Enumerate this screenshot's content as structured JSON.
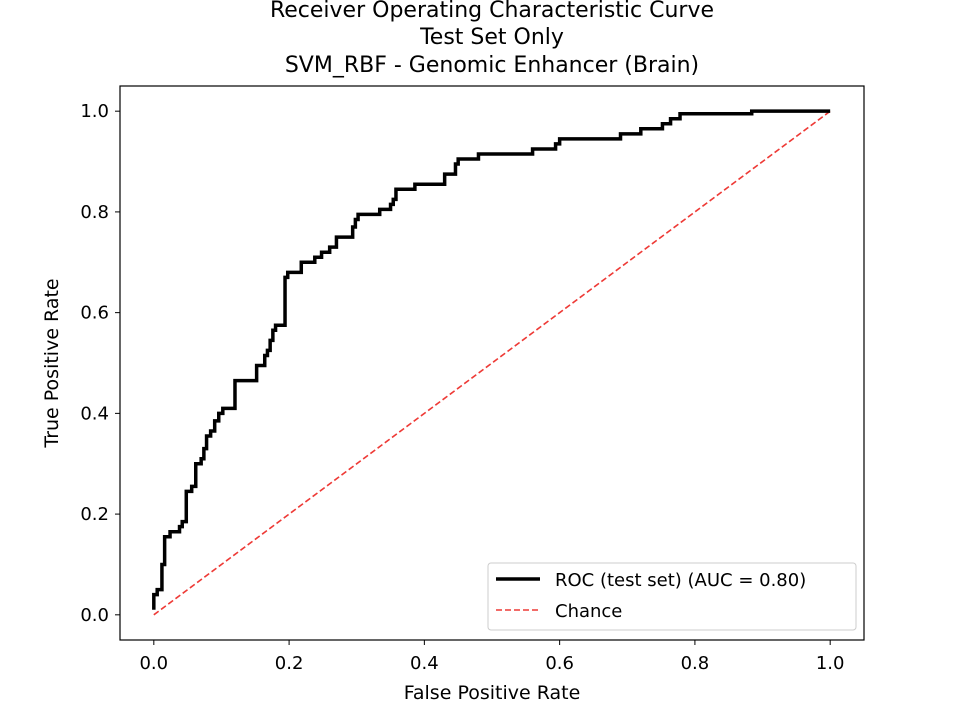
{
  "chart_data": {
    "type": "line",
    "title": [
      "Receiver Operating Characteristic Curve",
      "Test Set Only",
      "SVM_RBF - Genomic Enhancer (Brain)"
    ],
    "xlabel": "False Positive Rate",
    "ylabel": "True Positive Rate",
    "xlim": [
      -0.05,
      1.05
    ],
    "ylim": [
      -0.05,
      1.05
    ],
    "x_ticks": [
      0.0,
      0.2,
      0.4,
      0.6,
      0.8,
      1.0
    ],
    "y_ticks": [
      0.0,
      0.2,
      0.4,
      0.6,
      0.8,
      1.0
    ],
    "x_tick_labels": [
      "0.0",
      "0.2",
      "0.4",
      "0.6",
      "0.8",
      "1.0"
    ],
    "y_tick_labels": [
      "0.0",
      "0.2",
      "0.4",
      "0.6",
      "0.8",
      "1.0"
    ],
    "grid": false,
    "legend_position": "lower-right",
    "series": [
      {
        "name": "ROC (test set) (AUC = 0.80)",
        "color": "#000000",
        "style": "solid",
        "points": [
          [
            0.0,
            0.01
          ],
          [
            0.0,
            0.04
          ],
          [
            0.005,
            0.04
          ],
          [
            0.005,
            0.05
          ],
          [
            0.012,
            0.05
          ],
          [
            0.012,
            0.1
          ],
          [
            0.016,
            0.1
          ],
          [
            0.016,
            0.155
          ],
          [
            0.024,
            0.155
          ],
          [
            0.024,
            0.165
          ],
          [
            0.038,
            0.165
          ],
          [
            0.038,
            0.175
          ],
          [
            0.042,
            0.175
          ],
          [
            0.042,
            0.185
          ],
          [
            0.048,
            0.185
          ],
          [
            0.048,
            0.245
          ],
          [
            0.056,
            0.245
          ],
          [
            0.056,
            0.255
          ],
          [
            0.062,
            0.255
          ],
          [
            0.062,
            0.3
          ],
          [
            0.07,
            0.3
          ],
          [
            0.07,
            0.31
          ],
          [
            0.074,
            0.31
          ],
          [
            0.074,
            0.33
          ],
          [
            0.078,
            0.33
          ],
          [
            0.078,
            0.355
          ],
          [
            0.084,
            0.355
          ],
          [
            0.084,
            0.365
          ],
          [
            0.09,
            0.365
          ],
          [
            0.09,
            0.385
          ],
          [
            0.096,
            0.385
          ],
          [
            0.096,
            0.4
          ],
          [
            0.102,
            0.4
          ],
          [
            0.102,
            0.41
          ],
          [
            0.12,
            0.41
          ],
          [
            0.12,
            0.465
          ],
          [
            0.152,
            0.465
          ],
          [
            0.152,
            0.495
          ],
          [
            0.164,
            0.495
          ],
          [
            0.164,
            0.515
          ],
          [
            0.168,
            0.515
          ],
          [
            0.168,
            0.525
          ],
          [
            0.172,
            0.525
          ],
          [
            0.172,
            0.545
          ],
          [
            0.176,
            0.545
          ],
          [
            0.176,
            0.565
          ],
          [
            0.18,
            0.565
          ],
          [
            0.18,
            0.575
          ],
          [
            0.194,
            0.575
          ],
          [
            0.194,
            0.67
          ],
          [
            0.198,
            0.67
          ],
          [
            0.198,
            0.68
          ],
          [
            0.218,
            0.68
          ],
          [
            0.218,
            0.7
          ],
          [
            0.238,
            0.7
          ],
          [
            0.238,
            0.71
          ],
          [
            0.248,
            0.71
          ],
          [
            0.248,
            0.72
          ],
          [
            0.26,
            0.72
          ],
          [
            0.26,
            0.73
          ],
          [
            0.27,
            0.73
          ],
          [
            0.27,
            0.75
          ],
          [
            0.294,
            0.75
          ],
          [
            0.294,
            0.77
          ],
          [
            0.298,
            0.77
          ],
          [
            0.298,
            0.785
          ],
          [
            0.302,
            0.785
          ],
          [
            0.302,
            0.795
          ],
          [
            0.334,
            0.795
          ],
          [
            0.334,
            0.805
          ],
          [
            0.35,
            0.805
          ],
          [
            0.35,
            0.815
          ],
          [
            0.354,
            0.815
          ],
          [
            0.354,
            0.825
          ],
          [
            0.358,
            0.825
          ],
          [
            0.358,
            0.845
          ],
          [
            0.386,
            0.845
          ],
          [
            0.386,
            0.855
          ],
          [
            0.43,
            0.855
          ],
          [
            0.43,
            0.875
          ],
          [
            0.446,
            0.875
          ],
          [
            0.446,
            0.895
          ],
          [
            0.45,
            0.895
          ],
          [
            0.45,
            0.905
          ],
          [
            0.48,
            0.905
          ],
          [
            0.48,
            0.915
          ],
          [
            0.56,
            0.915
          ],
          [
            0.56,
            0.925
          ],
          [
            0.594,
            0.925
          ],
          [
            0.594,
            0.935
          ],
          [
            0.6,
            0.935
          ],
          [
            0.6,
            0.945
          ],
          [
            0.69,
            0.945
          ],
          [
            0.69,
            0.955
          ],
          [
            0.72,
            0.955
          ],
          [
            0.72,
            0.965
          ],
          [
            0.752,
            0.965
          ],
          [
            0.752,
            0.975
          ],
          [
            0.764,
            0.975
          ],
          [
            0.764,
            0.985
          ],
          [
            0.778,
            0.985
          ],
          [
            0.778,
            0.995
          ],
          [
            0.884,
            0.995
          ],
          [
            0.884,
            1.0
          ],
          [
            1.0,
            1.0
          ]
        ]
      },
      {
        "name": "Chance",
        "color": "#ee3a36",
        "style": "dashed",
        "points": [
          [
            0.0,
            0.0
          ],
          [
            1.0,
            1.0
          ]
        ]
      }
    ]
  }
}
